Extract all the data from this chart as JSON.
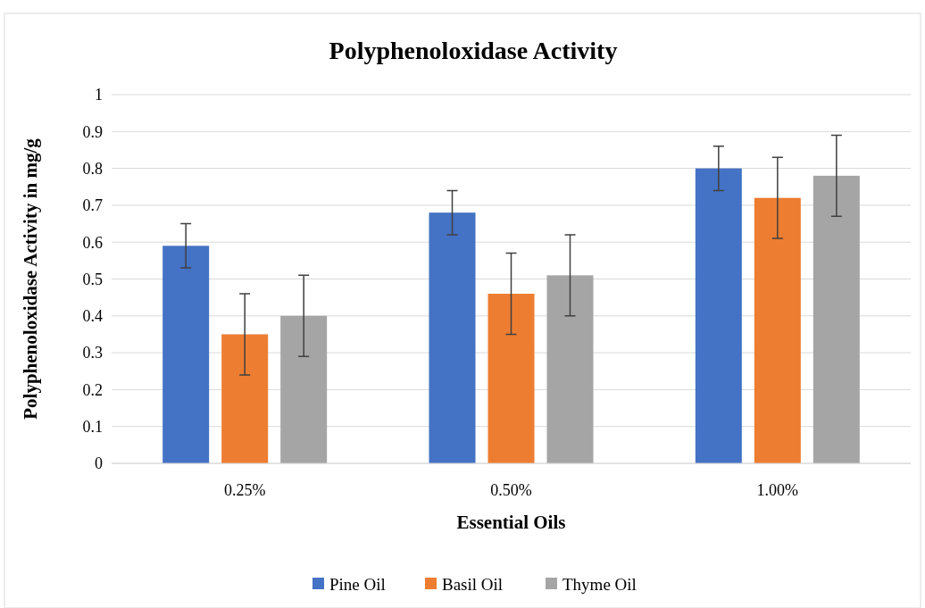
{
  "chart_data": {
    "type": "bar",
    "title": "Polyphenoloxidase Activity",
    "xlabel": "Essential Oils",
    "ylabel": "Polyphenoloxidase Activity in mg/g",
    "categories": [
      "0.25%",
      "0.50%",
      "1.00%"
    ],
    "series": [
      {
        "name": "Pine Oil",
        "color": "#4472c4",
        "values": [
          0.59,
          0.68,
          0.8
        ],
        "errors": [
          0.06,
          0.06,
          0.06
        ]
      },
      {
        "name": "Basil Oil",
        "color": "#ed7d31",
        "values": [
          0.35,
          0.46,
          0.72
        ],
        "errors": [
          0.11,
          0.11,
          0.11
        ]
      },
      {
        "name": "Thyme Oil",
        "color": "#a5a5a5",
        "values": [
          0.4,
          0.51,
          0.78
        ],
        "errors": [
          0.11,
          0.11,
          0.11
        ]
      }
    ],
    "ylim": [
      0,
      1
    ],
    "yticks": [
      0,
      0.1,
      0.2,
      0.3,
      0.4,
      0.5,
      0.6,
      0.7,
      0.8,
      0.9,
      1
    ],
    "grid": "y",
    "legend": "bottom"
  }
}
